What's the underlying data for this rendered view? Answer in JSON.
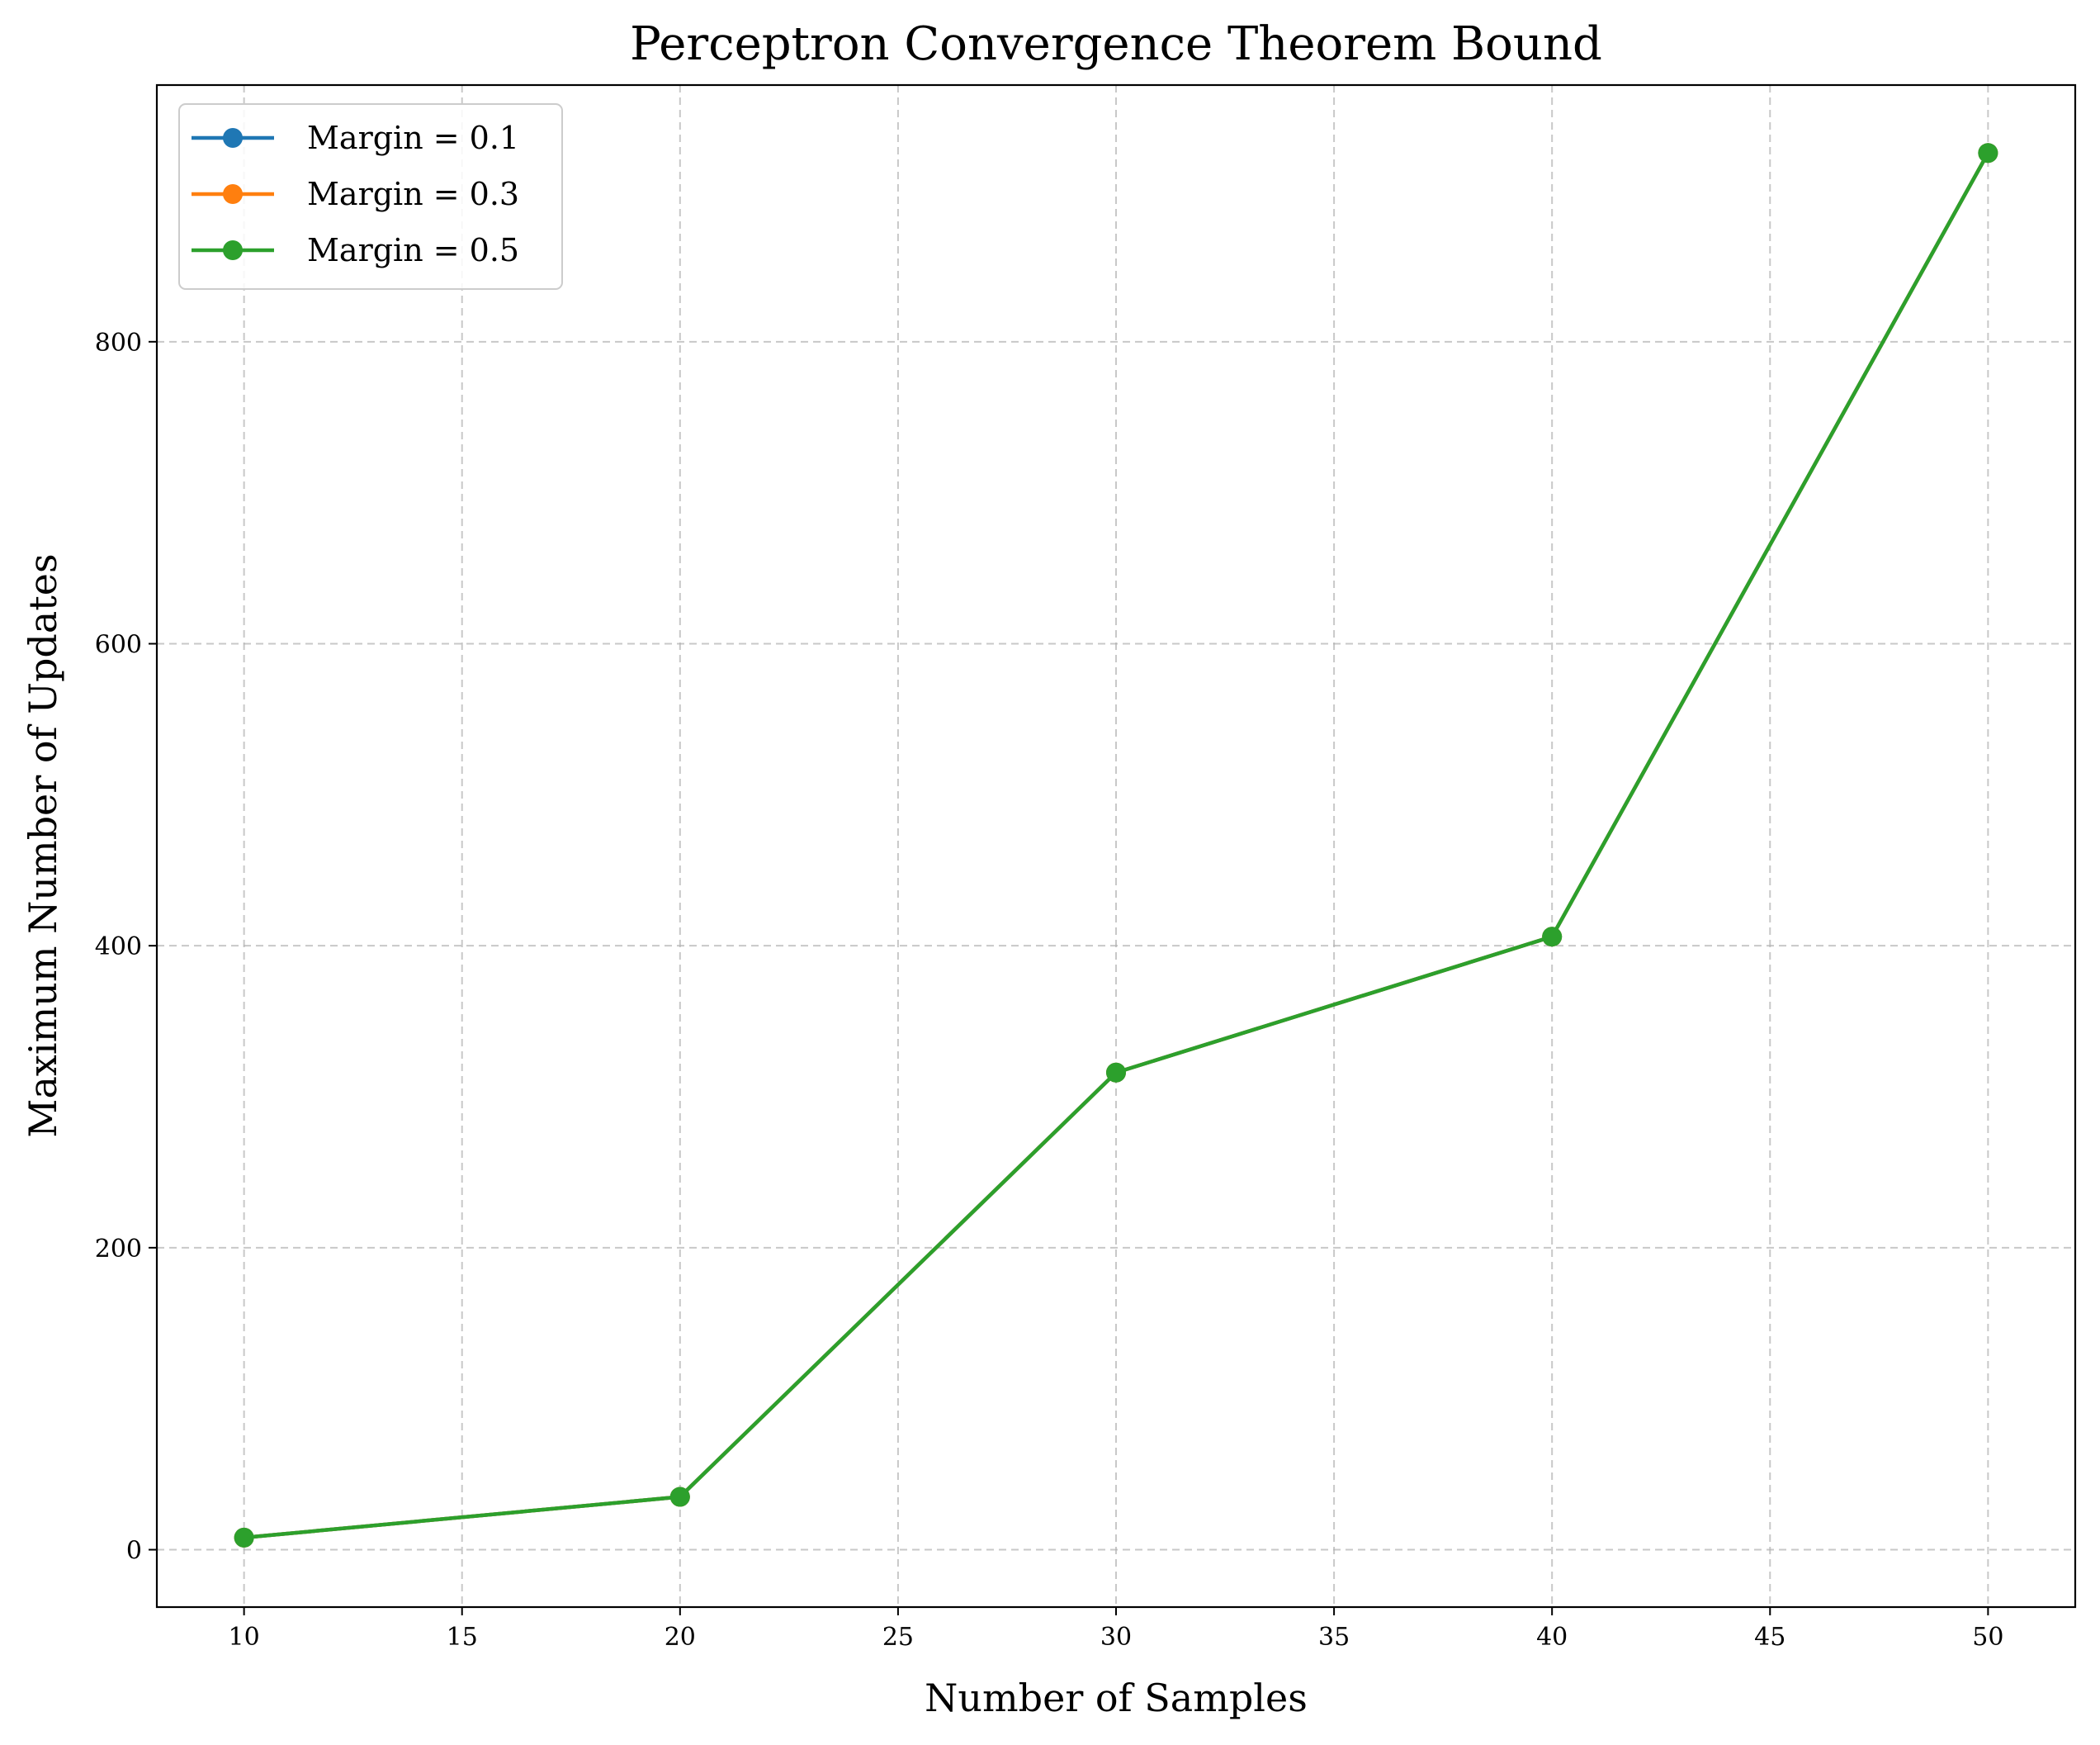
{
  "chart_data": {
    "type": "line",
    "title": "Perceptron Convergence Theorem Bound",
    "xlabel": "Number of Samples",
    "ylabel": "Maximum Number of Updates",
    "xlim": [
      8,
      52
    ],
    "ylim": [
      -38,
      970
    ],
    "xticks": [
      10,
      15,
      20,
      25,
      30,
      35,
      40,
      45,
      50
    ],
    "yticks": [
      0,
      200,
      400,
      600,
      800
    ],
    "grid": true,
    "grid_style": "dashed",
    "legend_position": "upper-left",
    "marker": "circle",
    "x": [
      10,
      20,
      30,
      40,
      50
    ],
    "series": [
      {
        "name": "Margin = 0.1",
        "color": "#1f77b4",
        "values": [
          8,
          35,
          316,
          406,
          925
        ]
      },
      {
        "name": "Margin = 0.3",
        "color": "#ff7f0e",
        "values": [
          8,
          35,
          316,
          406,
          925
        ]
      },
      {
        "name": "Margin = 0.5",
        "color": "#2ca02c",
        "values": [
          8,
          35,
          316,
          406,
          925
        ]
      }
    ]
  }
}
